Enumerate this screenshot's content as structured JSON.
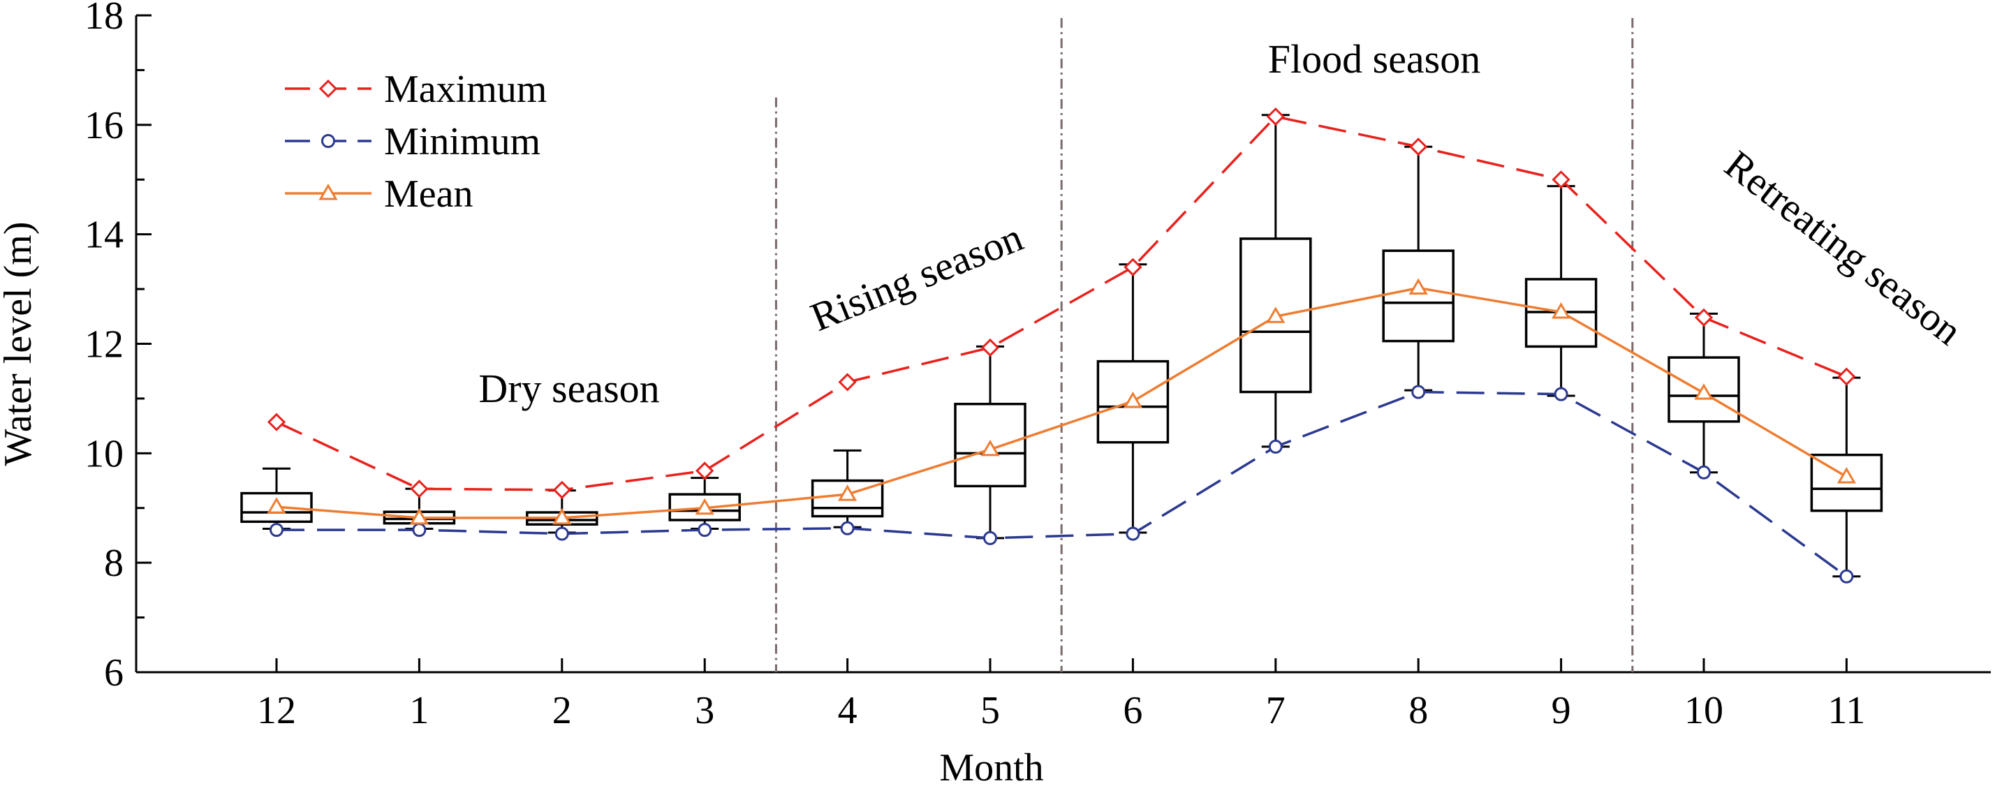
{
  "chart_data": {
    "type": "box",
    "xlabel": "Month",
    "ylabel": "Water level (m)",
    "ylim": [
      6,
      18
    ],
    "yticks": [
      6,
      8,
      10,
      12,
      14,
      16,
      18
    ],
    "categories": [
      "12",
      "1",
      "2",
      "3",
      "4",
      "5",
      "6",
      "7",
      "8",
      "9",
      "10",
      "11"
    ],
    "legend_position": "top-left",
    "boxes": [
      {
        "month": "12",
        "whisker_low": 8.62,
        "q1": 8.75,
        "median": 8.92,
        "q3": 9.27,
        "whisker_high": 9.72
      },
      {
        "month": "1",
        "whisker_low": 8.62,
        "q1": 8.72,
        "median": 8.8,
        "q3": 8.93,
        "whisker_high": 9.35
      },
      {
        "month": "2",
        "whisker_low": 8.55,
        "q1": 8.7,
        "median": 8.78,
        "q3": 8.92,
        "whisker_high": 9.32
      },
      {
        "month": "3",
        "whisker_low": 8.62,
        "q1": 8.78,
        "median": 8.95,
        "q3": 9.25,
        "whisker_high": 9.55
      },
      {
        "month": "4",
        "whisker_low": 8.65,
        "q1": 8.85,
        "median": 9.0,
        "q3": 9.5,
        "whisker_high": 10.05
      },
      {
        "month": "5",
        "whisker_low": 8.45,
        "q1": 9.4,
        "median": 10.0,
        "q3": 10.9,
        "whisker_high": 11.95
      },
      {
        "month": "6",
        "whisker_low": 8.55,
        "q1": 10.2,
        "median": 10.85,
        "q3": 11.68,
        "whisker_high": 13.45
      },
      {
        "month": "7",
        "whisker_low": 10.12,
        "q1": 11.12,
        "median": 12.22,
        "q3": 13.92,
        "whisker_high": 16.18
      },
      {
        "month": "8",
        "whisker_low": 11.15,
        "q1": 12.05,
        "median": 12.75,
        "q3": 13.7,
        "whisker_high": 15.6
      },
      {
        "month": "9",
        "whisker_low": 11.05,
        "q1": 11.95,
        "median": 12.58,
        "q3": 13.18,
        "whisker_high": 14.88
      },
      {
        "month": "10",
        "whisker_low": 9.65,
        "q1": 10.58,
        "median": 11.05,
        "q3": 11.75,
        "whisker_high": 12.55
      },
      {
        "month": "11",
        "whisker_low": 7.75,
        "q1": 8.95,
        "median": 9.35,
        "q3": 9.97,
        "whisker_high": 11.38
      }
    ],
    "series": [
      {
        "name": "Maximum",
        "color": "#e8211d",
        "marker": "diamond",
        "line": "dashed",
        "values": [
          10.57,
          9.35,
          9.33,
          9.68,
          11.3,
          11.93,
          13.4,
          16.15,
          15.6,
          15.0,
          12.48,
          11.4
        ]
      },
      {
        "name": "Minimum",
        "color": "#2b3990",
        "marker": "circle",
        "line": "dashed",
        "values": [
          8.6,
          8.6,
          8.53,
          8.6,
          8.63,
          8.45,
          8.53,
          10.12,
          11.12,
          11.08,
          9.65,
          7.75
        ]
      },
      {
        "name": "Mean",
        "color": "#ee7d31",
        "marker": "triangle",
        "line": "solid",
        "values": [
          9.02,
          8.82,
          8.82,
          9.0,
          9.25,
          10.07,
          10.95,
          12.5,
          13.02,
          12.58,
          11.1,
          9.57
        ]
      }
    ],
    "seasons": [
      {
        "label": "Dry season"
      },
      {
        "label": "Rising season"
      },
      {
        "label": "Flood season"
      },
      {
        "label": "Retreating season"
      }
    ]
  }
}
